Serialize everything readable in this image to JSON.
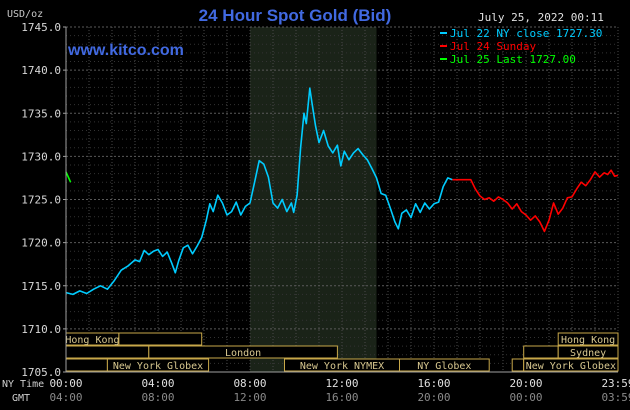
{
  "chart_data": {
    "type": "line",
    "title": "24 Hour Spot Gold (Bid)",
    "brand": "www.kitco.com",
    "timestamp": "July 25, 2022 00:11",
    "ylabel": "USD/oz",
    "ylim": [
      1705,
      1745
    ],
    "yticks": [
      "1745.0",
      "1740.0",
      "1735.0",
      "1730.0",
      "1725.0",
      "1720.0",
      "1715.0",
      "1710.0",
      "1705.0"
    ],
    "xlim": [
      0,
      24
    ],
    "xticks": [
      {
        "x": 0,
        "ny": "00:00",
        "gmt": "04:00"
      },
      {
        "x": 4,
        "ny": "04:00",
        "gmt": "08:00"
      },
      {
        "x": 8,
        "ny": "08:00",
        "gmt": "12:00"
      },
      {
        "x": 12,
        "ny": "12:00",
        "gmt": "16:00"
      },
      {
        "x": 16,
        "ny": "16:00",
        "gmt": "20:00"
      },
      {
        "x": 20,
        "ny": "20:00",
        "gmt": "00:00"
      },
      {
        "x": 24,
        "ny": "23:59",
        "gmt": "03:59"
      }
    ],
    "xlabel_ny": "NY Time",
    "xlabel_gmt": "GMT",
    "grid": true,
    "legend_position": "top-right",
    "shaded_region": {
      "x_start": 8.0,
      "x_end": 13.5
    },
    "colors": {
      "background": "#000000",
      "grid": "#4a4a4a",
      "axes": "#a0a0a0",
      "title": "#4169e1",
      "brand": "#4169e1"
    },
    "legend": [
      {
        "label": "Jul 22 NY close 1727.30",
        "color": "#00ccff"
      },
      {
        "label": "Jul 24 Sunday",
        "color": "#ff0000"
      },
      {
        "label": "Jul 25 Last 1727.00",
        "color": "#00ff00"
      }
    ],
    "series": [
      {
        "name": "Jul 22 NY close 1727.30",
        "color": "#00ccff",
        "points": [
          [
            0,
            1714.2
          ],
          [
            0.3,
            1714.0
          ],
          [
            0.6,
            1714.4
          ],
          [
            0.9,
            1714.1
          ],
          [
            1.2,
            1714.6
          ],
          [
            1.5,
            1715.0
          ],
          [
            1.8,
            1714.6
          ],
          [
            2.1,
            1715.6
          ],
          [
            2.4,
            1716.8
          ],
          [
            2.7,
            1717.3
          ],
          [
            3.0,
            1718.0
          ],
          [
            3.2,
            1717.8
          ],
          [
            3.4,
            1719.1
          ],
          [
            3.6,
            1718.6
          ],
          [
            3.8,
            1719.0
          ],
          [
            4.0,
            1719.2
          ],
          [
            4.2,
            1718.4
          ],
          [
            4.4,
            1718.9
          ],
          [
            4.6,
            1717.6
          ],
          [
            4.75,
            1716.5
          ],
          [
            4.9,
            1717.9
          ],
          [
            5.1,
            1719.4
          ],
          [
            5.3,
            1719.7
          ],
          [
            5.5,
            1718.7
          ],
          [
            5.7,
            1719.6
          ],
          [
            5.9,
            1720.6
          ],
          [
            6.1,
            1722.6
          ],
          [
            6.25,
            1724.5
          ],
          [
            6.4,
            1723.6
          ],
          [
            6.6,
            1725.5
          ],
          [
            6.8,
            1724.6
          ],
          [
            7.0,
            1723.2
          ],
          [
            7.2,
            1723.6
          ],
          [
            7.4,
            1724.7
          ],
          [
            7.6,
            1723.2
          ],
          [
            7.8,
            1724.2
          ],
          [
            8.0,
            1724.6
          ],
          [
            8.2,
            1727.0
          ],
          [
            8.4,
            1729.5
          ],
          [
            8.6,
            1729.1
          ],
          [
            8.8,
            1727.6
          ],
          [
            9.0,
            1724.6
          ],
          [
            9.2,
            1724.0
          ],
          [
            9.4,
            1725.0
          ],
          [
            9.6,
            1723.6
          ],
          [
            9.8,
            1724.6
          ],
          [
            9.9,
            1723.5
          ],
          [
            10.05,
            1725.5
          ],
          [
            10.2,
            1731.0
          ],
          [
            10.35,
            1735.0
          ],
          [
            10.45,
            1733.8
          ],
          [
            10.6,
            1737.9
          ],
          [
            10.7,
            1736.1
          ],
          [
            10.85,
            1733.5
          ],
          [
            11.0,
            1731.6
          ],
          [
            11.2,
            1733.0
          ],
          [
            11.4,
            1731.2
          ],
          [
            11.6,
            1730.4
          ],
          [
            11.8,
            1731.3
          ],
          [
            11.95,
            1728.9
          ],
          [
            12.1,
            1730.6
          ],
          [
            12.3,
            1729.6
          ],
          [
            12.5,
            1730.4
          ],
          [
            12.7,
            1730.9
          ],
          [
            12.9,
            1730.2
          ],
          [
            13.1,
            1729.6
          ],
          [
            13.3,
            1728.6
          ],
          [
            13.5,
            1727.5
          ],
          [
            13.7,
            1725.7
          ],
          [
            13.9,
            1725.5
          ],
          [
            14.1,
            1724.0
          ],
          [
            14.3,
            1722.4
          ],
          [
            14.45,
            1721.6
          ],
          [
            14.6,
            1723.4
          ],
          [
            14.8,
            1723.8
          ],
          [
            15.0,
            1722.9
          ],
          [
            15.2,
            1724.5
          ],
          [
            15.4,
            1723.5
          ],
          [
            15.6,
            1724.6
          ],
          [
            15.8,
            1723.9
          ],
          [
            16.0,
            1724.5
          ],
          [
            16.2,
            1724.7
          ],
          [
            16.4,
            1726.5
          ],
          [
            16.6,
            1727.5
          ],
          [
            16.8,
            1727.3
          ]
        ]
      },
      {
        "name": "Jul 24 Sunday",
        "color": "#ff0000",
        "points": [
          [
            16.8,
            1727.3
          ],
          [
            17.6,
            1727.3
          ],
          [
            17.8,
            1726.2
          ],
          [
            18.0,
            1725.4
          ],
          [
            18.2,
            1725.0
          ],
          [
            18.4,
            1725.2
          ],
          [
            18.6,
            1724.8
          ],
          [
            18.8,
            1725.3
          ],
          [
            19.0,
            1725.0
          ],
          [
            19.2,
            1724.6
          ],
          [
            19.4,
            1723.9
          ],
          [
            19.6,
            1724.5
          ],
          [
            19.8,
            1723.6
          ],
          [
            20.0,
            1723.2
          ],
          [
            20.2,
            1722.6
          ],
          [
            20.4,
            1723.1
          ],
          [
            20.6,
            1722.4
          ],
          [
            20.8,
            1721.3
          ],
          [
            21.0,
            1722.6
          ],
          [
            21.2,
            1724.6
          ],
          [
            21.4,
            1723.3
          ],
          [
            21.6,
            1724.0
          ],
          [
            21.8,
            1725.2
          ],
          [
            22.0,
            1725.3
          ],
          [
            22.2,
            1726.2
          ],
          [
            22.4,
            1727.0
          ],
          [
            22.6,
            1726.6
          ],
          [
            22.8,
            1727.3
          ],
          [
            23.0,
            1728.2
          ],
          [
            23.2,
            1727.6
          ],
          [
            23.4,
            1728.1
          ],
          [
            23.55,
            1727.9
          ],
          [
            23.7,
            1728.4
          ],
          [
            23.85,
            1727.7
          ],
          [
            24.0,
            1727.8
          ]
        ]
      },
      {
        "name": "Jul 25 Last 1727.00",
        "color": "#00ff00",
        "points": [
          [
            0.0,
            1728.2
          ],
          [
            0.1,
            1727.6
          ],
          [
            0.2,
            1727.0
          ]
        ]
      }
    ],
    "sessions": [
      {
        "label": "Hong Kong",
        "start": 0.0,
        "end": 2.3,
        "row": 0
      },
      {
        "label": "",
        "start": 2.3,
        "end": 5.9,
        "row": 0
      },
      {
        "label": "",
        "start": 0.0,
        "end": 3.6,
        "row": 1
      },
      {
        "label": "London",
        "start": 3.6,
        "end": 11.8,
        "row": 1
      },
      {
        "label": "",
        "start": 0.0,
        "end": 1.8,
        "row": 2
      },
      {
        "label": "New York Globex",
        "start": 1.8,
        "end": 6.2,
        "row": 2
      },
      {
        "label": "New York NYMEX",
        "start": 9.5,
        "end": 14.5,
        "row": 2
      },
      {
        "label": "NY Globex",
        "start": 14.5,
        "end": 18.4,
        "row": 2
      },
      {
        "label": "Hong Kong",
        "start": 21.4,
        "end": 24.0,
        "row": 0
      },
      {
        "label": "",
        "start": 19.9,
        "end": 21.4,
        "row": 1
      },
      {
        "label": "Sydney",
        "start": 21.4,
        "end": 24.0,
        "row": 1
      },
      {
        "label": "",
        "start": 19.4,
        "end": 19.9,
        "row": 2
      },
      {
        "label": "New York Globex",
        "start": 19.9,
        "end": 24.0,
        "row": 2
      }
    ]
  }
}
